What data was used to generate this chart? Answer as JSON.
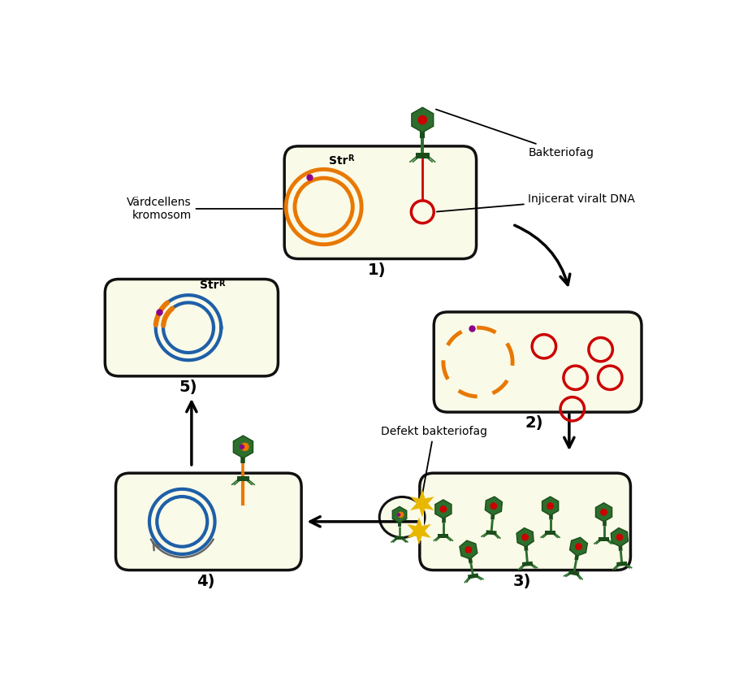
{
  "cell_fill": "#FAFAE8",
  "cell_edge": "#111111",
  "orange_color": "#E87800",
  "red_color": "#CC0000",
  "green_color": "#2D6E2D",
  "green_dark": "#1a4d1a",
  "purple_color": "#8B008B",
  "blue_color": "#1E5FA8",
  "gray_arrow": "#666666",
  "star_color": "#E8B800",
  "title1": "1)",
  "title2": "2)",
  "title3": "3)",
  "title4": "4)",
  "title5": "5)",
  "label_bakteriofag": "Bakteriofag",
  "label_injicerat": "Injicerat viralt DNA",
  "label_vardcellens": "Värdcellens\nkromosom",
  "label_defekt": "Defekt bakteriofag",
  "label_str": "Str",
  "label_str_sup": "R",
  "figw": 9.26,
  "figh": 8.38
}
